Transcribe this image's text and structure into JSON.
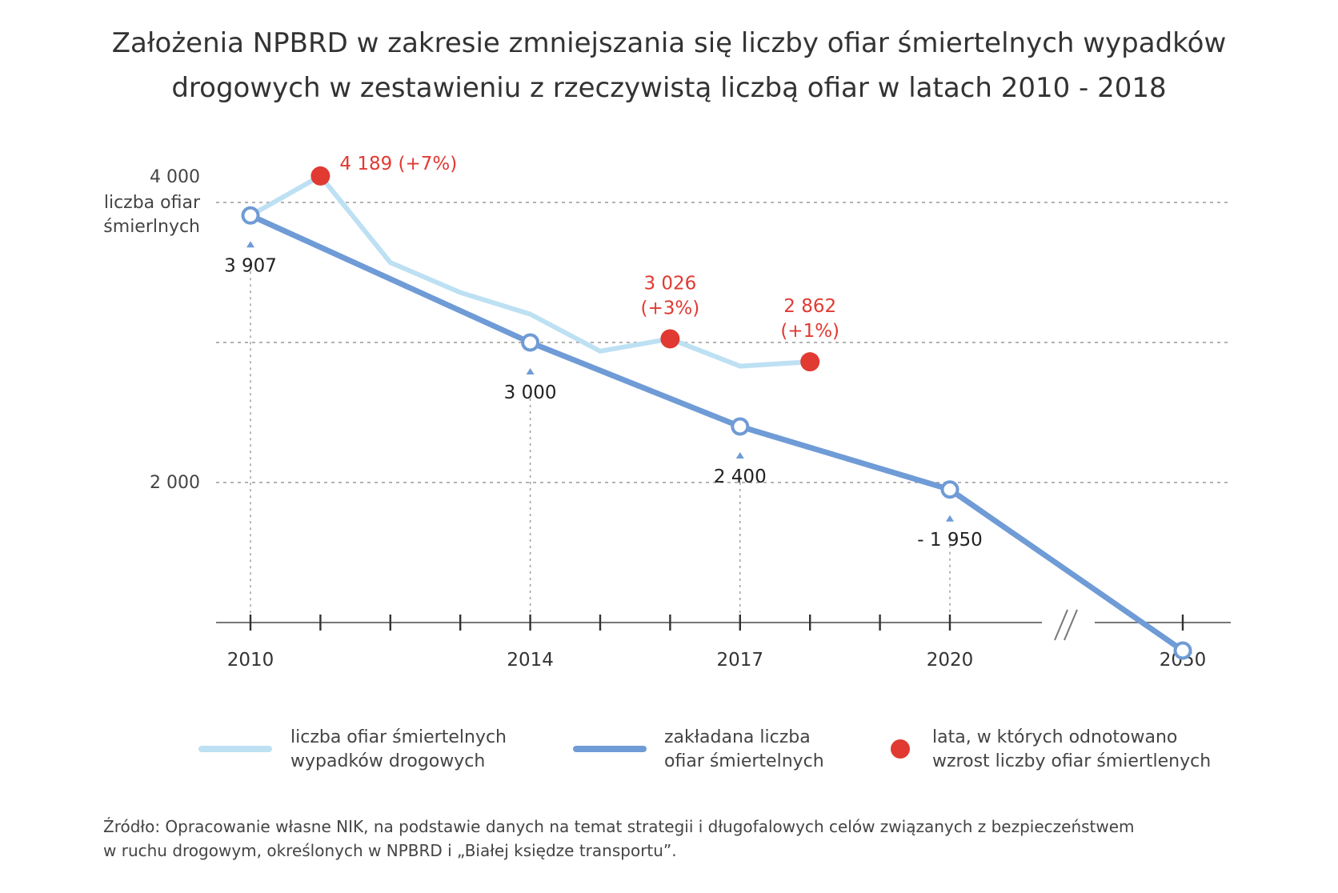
{
  "title_lines": [
    "Założenia NPBRD w zakresie zmniejszania się liczby ofiar śmiertelnych wypadków",
    "drogowych w zestawieniu z rzeczywistą liczbą ofiar w latach 2010 - 2018"
  ],
  "colors": {
    "actual": "#bde0f3",
    "planned": "#6f9bd6",
    "increase": "#e03a32",
    "grid": "#999999",
    "text": "#333333"
  },
  "chart_data": {
    "type": "line",
    "ylabel": [
      "liczba ofiar",
      "śmierlnych"
    ],
    "y_ticks": [
      {
        "value": 4000,
        "label": "4 000"
      },
      {
        "value": 2000,
        "label": "2 000"
      }
    ],
    "x_tick_years": [
      2010,
      2011,
      2012,
      2013,
      2014,
      2015,
      2016,
      2017,
      2018,
      2019,
      2020,
      2050
    ],
    "x_labels": [
      {
        "year": 2010,
        "label": "2010"
      },
      {
        "year": 2014,
        "label": "2014"
      },
      {
        "year": 2017,
        "label": "2017"
      },
      {
        "year": 2020,
        "label": "2020"
      },
      {
        "year": 2050,
        "label": "2050"
      }
    ],
    "series": [
      {
        "name": "liczba ofiar śmiertelnych wypadków drogowych",
        "x": [
          2010,
          2011,
          2012,
          2013,
          2014,
          2015,
          2016,
          2017,
          2018
        ],
        "y": [
          3907,
          4189,
          3571,
          3357,
          3202,
          2938,
          3026,
          2831,
          2862
        ]
      },
      {
        "name": "zakładana liczba ofiar śmiertelnych",
        "x": [
          2010,
          2014,
          2017,
          2020,
          2050
        ],
        "y": [
          3907,
          3000,
          2400,
          1950,
          800
        ],
        "labels": [
          {
            "year": 2010,
            "label": "3 907"
          },
          {
            "year": 2014,
            "label": "3 000"
          },
          {
            "year": 2017,
            "label": "2 400"
          },
          {
            "year": 2020,
            "label": "- 1 950"
          }
        ]
      }
    ],
    "increase_points": [
      {
        "year": 2011,
        "value": 4189,
        "label_lines": [
          "4 189 (+7%)"
        ]
      },
      {
        "year": 2016,
        "value": 3026,
        "label_lines": [
          "3 026",
          "(+3%)"
        ]
      },
      {
        "year": 2018,
        "value": 2862,
        "label_lines": [
          "2 862",
          "(+1%)"
        ]
      }
    ],
    "axis_break": "//",
    "grid": true
  },
  "legend": {
    "actual": [
      "liczba ofiar śmiertelnych",
      "wypadków drogowych"
    ],
    "planned": [
      "zakładana liczba",
      "ofiar śmiertelnych"
    ],
    "increase": [
      "lata, w których odnotowano",
      "wzrost liczby ofiar śmiertlenych"
    ]
  },
  "source_lines": [
    "Źródło: Opracowanie własne NIK, na podstawie danych na temat strategii i długofalowych celów związanych z bezpieczeństwem",
    "w ruchu drogowym, określonych w NPBRD i „Białej księdze transportu”."
  ]
}
